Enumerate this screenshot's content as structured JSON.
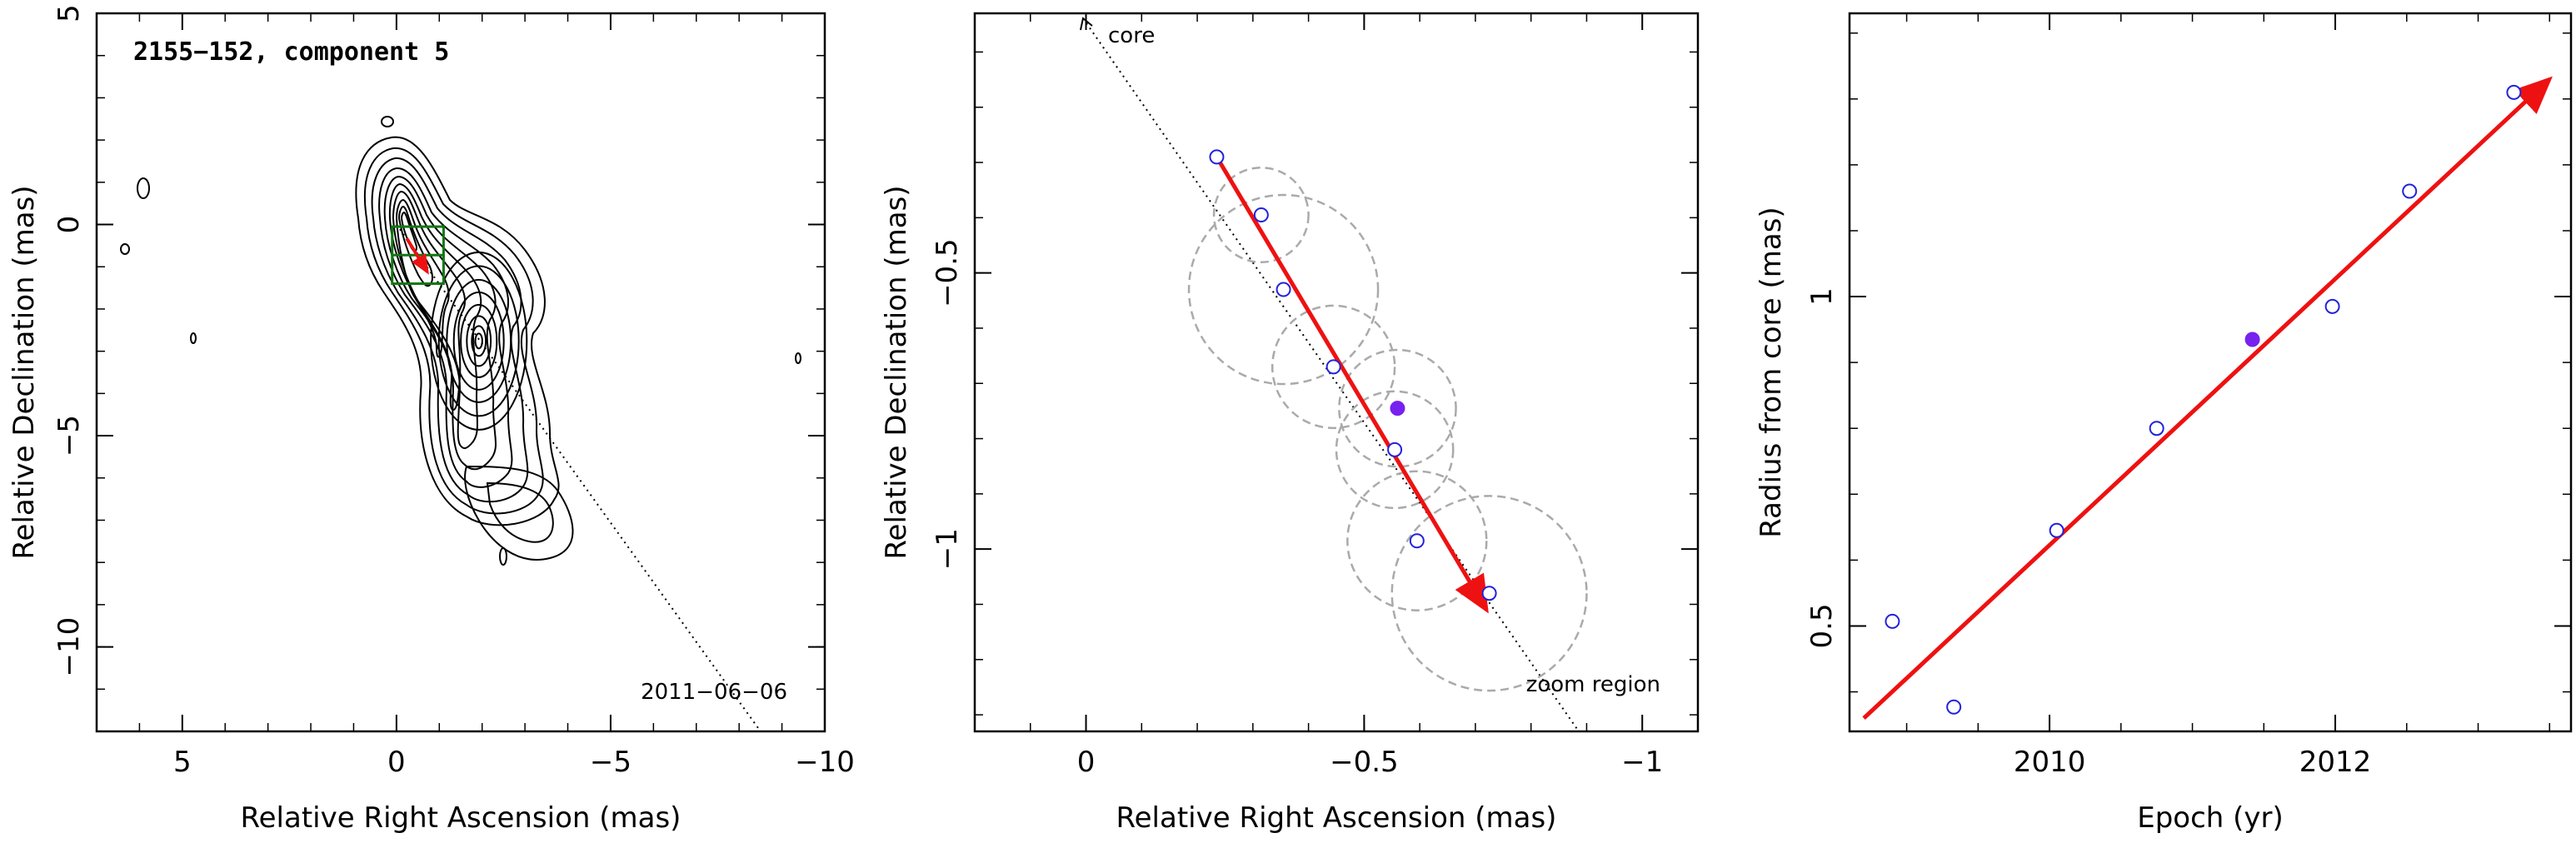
{
  "colors": {
    "axes": "#000000",
    "fit_arrow": "#ee1111",
    "epochs": "#2222dd",
    "current_epoch": "#7722ee",
    "zoom_circles": "#aaaaaa",
    "box": "#117711"
  },
  "chart_data": [
    {
      "type": "scatter",
      "panel": "contour-map",
      "title": "2155−152, component 5",
      "xlabel": "Relative Right Ascension (mas)",
      "ylabel": "Relative Declination (mas)",
      "xlim": [
        7,
        -10
      ],
      "ylim": [
        -12,
        5
      ],
      "xticks": [
        "5",
        "0",
        "−5",
        "−10"
      ],
      "yticks": [
        "5",
        "0",
        "−5",
        "−10"
      ],
      "annotation": "2011−06−06",
      "core_direction_line": [
        [
          0,
          0
        ],
        [
          -8.5,
          -12
        ]
      ],
      "zoom_box": {
        "x": [
          0.1,
          -1.1
        ],
        "y": [
          -0.05,
          -1.4
        ]
      },
      "component_vector": {
        "from": [
          -0.24,
          -0.33
        ],
        "to": [
          -0.72,
          -1.12
        ]
      }
    },
    {
      "type": "scatter",
      "panel": "zoom-region",
      "xlabel": "Relative Right Ascension (mas)",
      "ylabel": "Relative Declination (mas)",
      "xlim": [
        0.2,
        -1.1
      ],
      "ylim": [
        -1.33,
        -0.03
      ],
      "xticks": [
        "0",
        "−0.5",
        "−1"
      ],
      "yticks": [
        "−0.5",
        "−1"
      ],
      "labels": {
        "core": "core",
        "zoom": "zoom region"
      },
      "points": [
        {
          "x": -0.235,
          "y": -0.29,
          "r": 0.0,
          "filled": false
        },
        {
          "x": -0.315,
          "y": -0.395,
          "r": 0.085,
          "filled": false
        },
        {
          "x": -0.355,
          "y": -0.53,
          "r": 0.17,
          "filled": false
        },
        {
          "x": -0.445,
          "y": -0.67,
          "r": 0.11,
          "filled": false
        },
        {
          "x": -0.555,
          "y": -0.82,
          "r": 0.105,
          "filled": false
        },
        {
          "x": -0.595,
          "y": -0.985,
          "r": 0.125,
          "filled": false
        },
        {
          "x": -0.725,
          "y": -1.08,
          "r": 0.175,
          "filled": false
        },
        {
          "x": -0.56,
          "y": -0.745,
          "r": 0.105,
          "filled": true
        }
      ],
      "fit_vector": {
        "from": [
          -0.235,
          -0.29
        ],
        "to": [
          -0.72,
          -1.11
        ]
      }
    },
    {
      "type": "scatter",
      "panel": "radius-vs-epoch",
      "xlabel": "Epoch (yr)",
      "ylabel": "Radius from core (mas)",
      "xlim": [
        2008.6,
        2013.65
      ],
      "ylim": [
        0.34,
        1.43
      ],
      "xticks": [
        "2010",
        "2012"
      ],
      "yticks": [
        "0.5",
        "1"
      ],
      "points": [
        {
          "x": 2008.9,
          "y": 0.507,
          "filled": false
        },
        {
          "x": 2009.33,
          "y": 0.377,
          "filled": false
        },
        {
          "x": 2010.05,
          "y": 0.645,
          "filled": false
        },
        {
          "x": 2010.75,
          "y": 0.8,
          "filled": false
        },
        {
          "x": 2011.42,
          "y": 0.935,
          "filled": true
        },
        {
          "x": 2011.98,
          "y": 0.985,
          "filled": false
        },
        {
          "x": 2012.52,
          "y": 1.16,
          "filled": false
        },
        {
          "x": 2013.25,
          "y": 1.31,
          "filled": false
        }
      ],
      "fit_line": {
        "from": [
          2008.7,
          0.36
        ],
        "to": [
          2013.5,
          1.33
        ]
      }
    }
  ]
}
